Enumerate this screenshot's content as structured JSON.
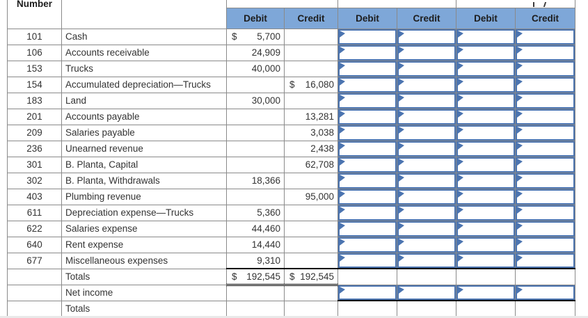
{
  "table": {
    "corner_header": "Number",
    "column_headers": [
      "Debit",
      "Credit",
      "Debit",
      "Credit",
      "Debit",
      "Credit"
    ],
    "rows": [
      {
        "number": "101",
        "account": "Cash",
        "debit_dollar": "$",
        "debit": "5,700",
        "credit_dollar": "",
        "credit": ""
      },
      {
        "number": "106",
        "account": "Accounts receivable",
        "debit_dollar": "",
        "debit": "24,909",
        "credit_dollar": "",
        "credit": ""
      },
      {
        "number": "153",
        "account": "Trucks",
        "debit_dollar": "",
        "debit": "40,000",
        "credit_dollar": "",
        "credit": ""
      },
      {
        "number": "154",
        "account": "Accumulated depreciation—Trucks",
        "debit_dollar": "",
        "debit": "",
        "credit_dollar": "$",
        "credit": "16,080"
      },
      {
        "number": "183",
        "account": "Land",
        "debit_dollar": "",
        "debit": "30,000",
        "credit_dollar": "",
        "credit": ""
      },
      {
        "number": "201",
        "account": "Accounts payable",
        "debit_dollar": "",
        "debit": "",
        "credit_dollar": "",
        "credit": "13,281"
      },
      {
        "number": "209",
        "account": "Salaries payable",
        "debit_dollar": "",
        "debit": "",
        "credit_dollar": "",
        "credit": "3,038"
      },
      {
        "number": "236",
        "account": "Unearned revenue",
        "debit_dollar": "",
        "debit": "",
        "credit_dollar": "",
        "credit": "2,438"
      },
      {
        "number": "301",
        "account": "B. Planta, Capital",
        "debit_dollar": "",
        "debit": "",
        "credit_dollar": "",
        "credit": "62,708"
      },
      {
        "number": "302",
        "account": "B. Planta, Withdrawals",
        "debit_dollar": "",
        "debit": "18,366",
        "credit_dollar": "",
        "credit": ""
      },
      {
        "number": "403",
        "account": "Plumbing revenue",
        "debit_dollar": "",
        "debit": "",
        "credit_dollar": "",
        "credit": "95,000"
      },
      {
        "number": "611",
        "account": "Depreciation expense—Trucks",
        "debit_dollar": "",
        "debit": "5,360",
        "credit_dollar": "",
        "credit": ""
      },
      {
        "number": "622",
        "account": "Salaries expense",
        "debit_dollar": "",
        "debit": "44,460",
        "credit_dollar": "",
        "credit": ""
      },
      {
        "number": "640",
        "account": "Rent expense",
        "debit_dollar": "",
        "debit": "14,440",
        "credit_dollar": "",
        "credit": ""
      },
      {
        "number": "677",
        "account": "Miscellaneous expenses",
        "debit_dollar": "",
        "debit": "9,310",
        "credit_dollar": "",
        "credit": ""
      }
    ],
    "totals_row": {
      "label": "Totals",
      "debit_dollar": "$",
      "debit": "192,545",
      "credit_dollar": "$",
      "credit": "192,545"
    },
    "net_income_row": {
      "label": "Net income"
    },
    "final_totals_row": {
      "label": "Totals"
    }
  },
  "colors": {
    "header_blue": "#7ea7d8",
    "input_border_blue": "#4b74b0",
    "grid_gray": "#8a8a8a",
    "heavy_rule_black": "#000000",
    "page_background": "#ffffff",
    "bottom_strip_gray": "#e9e9e9",
    "text_color": "#333333"
  }
}
